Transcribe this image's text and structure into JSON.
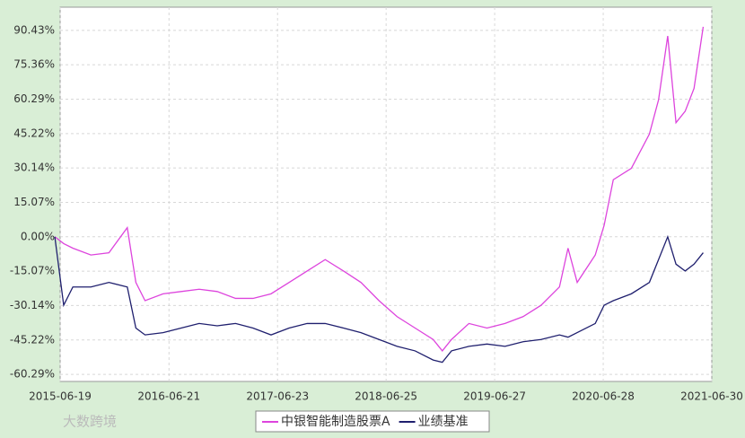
{
  "chart_data": {
    "type": "line",
    "x": [
      "2015-06",
      "2015-07",
      "2015-08",
      "2015-10",
      "2015-12",
      "2016-02",
      "2016-03",
      "2016-04",
      "2016-06",
      "2016-08",
      "2016-10",
      "2016-12",
      "2017-02",
      "2017-04",
      "2017-06",
      "2017-08",
      "2017-10",
      "2017-12",
      "2018-02",
      "2018-04",
      "2018-06",
      "2018-08",
      "2018-10",
      "2018-12",
      "2019-01",
      "2019-02",
      "2019-04",
      "2019-06",
      "2019-08",
      "2019-10",
      "2019-12",
      "2020-02",
      "2020-03",
      "2020-04",
      "2020-06",
      "2020-07",
      "2020-08",
      "2020-10",
      "2020-12",
      "2021-01",
      "2021-02",
      "2021-03",
      "2021-04",
      "2021-05",
      "2021-06"
    ],
    "series": [
      {
        "name": "中银智能制造股票A",
        "color": "#dd44dd",
        "values": [
          0,
          -3,
          -5,
          -8,
          -7,
          4,
          -20,
          -28,
          -25,
          -24,
          -23,
          -24,
          -27,
          -27,
          -25,
          -20,
          -15,
          -10,
          -15,
          -20,
          -28,
          -35,
          -40,
          -45,
          -50,
          -45,
          -38,
          -40,
          -38,
          -35,
          -30,
          -22,
          -5,
          -20,
          -8,
          5,
          25,
          30,
          45,
          60,
          88,
          50,
          55,
          65,
          92
        ]
      },
      {
        "name": "业绩基准",
        "color": "#1f1f6e",
        "values": [
          0,
          -30,
          -22,
          -22,
          -20,
          -22,
          -40,
          -43,
          -42,
          -40,
          -38,
          -39,
          -38,
          -40,
          -43,
          -40,
          -38,
          -38,
          -40,
          -42,
          -45,
          -48,
          -50,
          -54,
          -55,
          -50,
          -48,
          -47,
          -48,
          -46,
          -45,
          -43,
          -44,
          -42,
          -38,
          -30,
          -28,
          -25,
          -20,
          -10,
          0,
          -12,
          -15,
          -12,
          -7
        ]
      }
    ],
    "xlim": [
      "2015-06-19",
      "2021-06-30"
    ],
    "xticks": [
      "2015-06-19",
      "2016-06-21",
      "2017-06-23",
      "2018-06-25",
      "2019-06-27",
      "2020-06-28",
      "2021-06-30"
    ],
    "ylim": [
      -63.4,
      100.6
    ],
    "yticks": [
      {
        "value": 90.43,
        "label": "90.43%"
      },
      {
        "value": 75.36,
        "label": "75.36%"
      },
      {
        "value": 60.29,
        "label": "60.29%"
      },
      {
        "value": 45.22,
        "label": "45.22%"
      },
      {
        "value": 30.14,
        "label": "30.14%"
      },
      {
        "value": 15.07,
        "label": "15.07%"
      },
      {
        "value": 0,
        "label": "0.00%"
      },
      {
        "value": -15.07,
        "label": "-15.07%"
      },
      {
        "value": -30.14,
        "label": "-30.14%"
      },
      {
        "value": -45.22,
        "label": "-45.22%"
      },
      {
        "value": -60.29,
        "label": "-60.29%"
      }
    ],
    "grid": true,
    "legend": "bottom",
    "watermark": "大数跨境"
  }
}
